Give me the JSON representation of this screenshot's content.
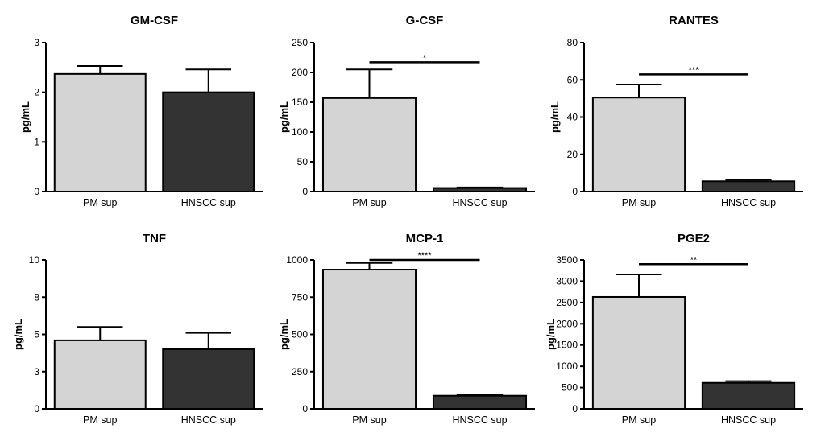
{
  "chart_data": [
    {
      "type": "bar",
      "title": "GM-CSF",
      "ylabel": "pg/mL",
      "xlabel": "",
      "ylim": [
        0,
        3
      ],
      "yticks": [
        0,
        1,
        2,
        3
      ],
      "ytick_labels": [
        "0",
        "1",
        "2",
        "3"
      ],
      "categories": [
        "PM sup",
        "HNSCC sup"
      ],
      "values": [
        2.37,
        2.0
      ],
      "errors": [
        0.16,
        0.46
      ],
      "colors": [
        "#d4d4d4",
        "#333333"
      ],
      "significance": null
    },
    {
      "type": "bar",
      "title": "G-CSF",
      "ylabel": "pg/mL",
      "xlabel": "",
      "ylim": [
        0,
        250
      ],
      "yticks": [
        0,
        50,
        100,
        150,
        200,
        250
      ],
      "ytick_labels": [
        "0",
        "50",
        "100",
        "150",
        "200",
        "250"
      ],
      "categories": [
        "PM sup",
        "HNSCC sup"
      ],
      "values": [
        157,
        6
      ],
      "errors": [
        48,
        1
      ],
      "colors": [
        "#d4d4d4",
        "#333333"
      ],
      "significance": {
        "label": "*",
        "y": 217
      }
    },
    {
      "type": "bar",
      "title": "RANTES",
      "ylabel": "pg/mL",
      "xlabel": "",
      "ylim": [
        0,
        80
      ],
      "yticks": [
        0,
        20,
        40,
        60,
        80
      ],
      "ytick_labels": [
        "0",
        "20",
        "40",
        "60",
        "80"
      ],
      "categories": [
        "PM sup",
        "HNSCC sup"
      ],
      "values": [
        50.5,
        5.5
      ],
      "errors": [
        7,
        0.8
      ],
      "colors": [
        "#d4d4d4",
        "#333333"
      ],
      "significance": {
        "label": "***",
        "y": 63
      }
    },
    {
      "type": "bar",
      "title": "TNF",
      "ylabel": "pg/mL",
      "xlabel": "",
      "ylim": [
        0,
        10
      ],
      "yticks": [
        0,
        2.5,
        5,
        7.5,
        10
      ],
      "ytick_labels": [
        "0",
        "3",
        "5",
        "8",
        "10"
      ],
      "categories": [
        "PM sup",
        "HNSCC sup"
      ],
      "values": [
        4.6,
        4.0
      ],
      "errors": [
        0.9,
        1.1
      ],
      "colors": [
        "#d4d4d4",
        "#333333"
      ],
      "significance": null
    },
    {
      "type": "bar",
      "title": "MCP-1",
      "ylabel": "pg/mL",
      "xlabel": "",
      "ylim": [
        0,
        1000
      ],
      "yticks": [
        0,
        250,
        500,
        750,
        1000
      ],
      "ytick_labels": [
        "0",
        "250",
        "500",
        "750",
        "1000"
      ],
      "categories": [
        "PM sup",
        "HNSCC sup"
      ],
      "values": [
        935,
        88
      ],
      "errors": [
        45,
        5
      ],
      "colors": [
        "#d4d4d4",
        "#333333"
      ],
      "significance": {
        "label": "****",
        "y": 1000
      }
    },
    {
      "type": "bar",
      "title": "PGE2",
      "ylabel": "pg/mL",
      "xlabel": "",
      "ylim": [
        0,
        3500
      ],
      "yticks": [
        0,
        500,
        1000,
        1500,
        2000,
        2500,
        3000,
        3500
      ],
      "ytick_labels": [
        "0",
        "500",
        "1000",
        "1500",
        "2000",
        "2500",
        "3000",
        "3500"
      ],
      "categories": [
        "PM sup",
        "HNSCC sup"
      ],
      "values": [
        2630,
        610
      ],
      "errors": [
        530,
        40
      ],
      "colors": [
        "#d4d4d4",
        "#333333"
      ],
      "significance": {
        "label": "**",
        "y": 3400
      }
    }
  ]
}
